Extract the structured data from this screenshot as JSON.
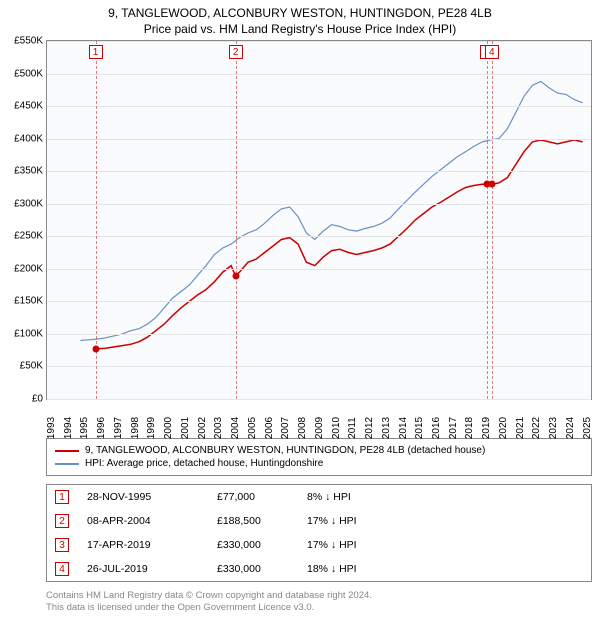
{
  "title_line1": "9, TANGLEWOOD, ALCONBURY WESTON, HUNTINGDON, PE28 4LB",
  "title_line2": "Price paid vs. HM Land Registry's House Price Index (HPI)",
  "chart": {
    "type": "line",
    "background_color": "#fafbfc",
    "border_color": "#888888",
    "grid_color": "#e6e6e6",
    "x_range": [
      1993,
      2025.5
    ],
    "y_range": [
      0,
      550000
    ],
    "y_ticks": [
      0,
      50000,
      100000,
      150000,
      200000,
      250000,
      300000,
      350000,
      400000,
      450000,
      500000,
      550000
    ],
    "y_tick_labels": [
      "£0",
      "£50K",
      "£100K",
      "£150K",
      "£200K",
      "£250K",
      "£300K",
      "£350K",
      "£400K",
      "£450K",
      "£500K",
      "£550K"
    ],
    "x_ticks": [
      1993,
      1994,
      1995,
      1996,
      1997,
      1998,
      1999,
      2000,
      2001,
      2002,
      2003,
      2004,
      2005,
      2006,
      2007,
      2008,
      2009,
      2010,
      2011,
      2012,
      2013,
      2014,
      2015,
      2016,
      2017,
      2018,
      2019,
      2020,
      2021,
      2022,
      2023,
      2024,
      2025
    ],
    "label_fontsize": 10,
    "series": {
      "property": {
        "color": "#cc0000",
        "width": 1.5,
        "data": [
          [
            1995.9,
            77000
          ],
          [
            1996.5,
            78000
          ],
          [
            1997,
            80000
          ],
          [
            1997.5,
            82000
          ],
          [
            1998,
            84000
          ],
          [
            1998.5,
            88000
          ],
          [
            1999,
            95000
          ],
          [
            1999.5,
            105000
          ],
          [
            2000,
            115000
          ],
          [
            2000.5,
            128000
          ],
          [
            2001,
            140000
          ],
          [
            2001.5,
            150000
          ],
          [
            2002,
            160000
          ],
          [
            2002.5,
            168000
          ],
          [
            2003,
            180000
          ],
          [
            2003.5,
            195000
          ],
          [
            2004,
            205000
          ],
          [
            2004.27,
            188500
          ],
          [
            2004.5,
            195000
          ],
          [
            2005,
            210000
          ],
          [
            2005.5,
            215000
          ],
          [
            2006,
            225000
          ],
          [
            2006.5,
            235000
          ],
          [
            2007,
            245000
          ],
          [
            2007.5,
            248000
          ],
          [
            2008,
            238000
          ],
          [
            2008.5,
            210000
          ],
          [
            2009,
            205000
          ],
          [
            2009.5,
            218000
          ],
          [
            2010,
            228000
          ],
          [
            2010.5,
            230000
          ],
          [
            2011,
            225000
          ],
          [
            2011.5,
            222000
          ],
          [
            2012,
            225000
          ],
          [
            2012.5,
            228000
          ],
          [
            2013,
            232000
          ],
          [
            2013.5,
            238000
          ],
          [
            2014,
            250000
          ],
          [
            2014.5,
            262000
          ],
          [
            2015,
            275000
          ],
          [
            2015.5,
            285000
          ],
          [
            2016,
            295000
          ],
          [
            2016.5,
            302000
          ],
          [
            2017,
            310000
          ],
          [
            2017.5,
            318000
          ],
          [
            2018,
            325000
          ],
          [
            2018.5,
            328000
          ],
          [
            2019,
            330000
          ],
          [
            2019.29,
            330000
          ],
          [
            2019.57,
            330000
          ],
          [
            2020,
            332000
          ],
          [
            2020.5,
            340000
          ],
          [
            2021,
            360000
          ],
          [
            2021.5,
            380000
          ],
          [
            2022,
            395000
          ],
          [
            2022.5,
            398000
          ],
          [
            2023,
            395000
          ],
          [
            2023.5,
            392000
          ],
          [
            2024,
            395000
          ],
          [
            2024.5,
            398000
          ],
          [
            2025,
            395000
          ]
        ]
      },
      "hpi": {
        "color": "#6a8fc4",
        "width": 1.2,
        "data": [
          [
            1995,
            90000
          ],
          [
            1995.5,
            91000
          ],
          [
            1996,
            92000
          ],
          [
            1996.5,
            94000
          ],
          [
            1997,
            97000
          ],
          [
            1997.5,
            100000
          ],
          [
            1998,
            105000
          ],
          [
            1998.5,
            108000
          ],
          [
            1999,
            115000
          ],
          [
            1999.5,
            125000
          ],
          [
            2000,
            140000
          ],
          [
            2000.5,
            155000
          ],
          [
            2001,
            165000
          ],
          [
            2001.5,
            175000
          ],
          [
            2002,
            190000
          ],
          [
            2002.5,
            205000
          ],
          [
            2003,
            222000
          ],
          [
            2003.5,
            232000
          ],
          [
            2004,
            238000
          ],
          [
            2004.5,
            248000
          ],
          [
            2005,
            255000
          ],
          [
            2005.5,
            260000
          ],
          [
            2006,
            270000
          ],
          [
            2006.5,
            282000
          ],
          [
            2007,
            292000
          ],
          [
            2007.5,
            295000
          ],
          [
            2008,
            280000
          ],
          [
            2008.5,
            255000
          ],
          [
            2009,
            245000
          ],
          [
            2009.5,
            258000
          ],
          [
            2010,
            268000
          ],
          [
            2010.5,
            265000
          ],
          [
            2011,
            260000
          ],
          [
            2011.5,
            258000
          ],
          [
            2012,
            262000
          ],
          [
            2012.5,
            265000
          ],
          [
            2013,
            270000
          ],
          [
            2013.5,
            278000
          ],
          [
            2014,
            292000
          ],
          [
            2014.5,
            305000
          ],
          [
            2015,
            318000
          ],
          [
            2015.5,
            330000
          ],
          [
            2016,
            342000
          ],
          [
            2016.5,
            352000
          ],
          [
            2017,
            362000
          ],
          [
            2017.5,
            372000
          ],
          [
            2018,
            380000
          ],
          [
            2018.5,
            388000
          ],
          [
            2019,
            395000
          ],
          [
            2019.5,
            398000
          ],
          [
            2020,
            400000
          ],
          [
            2020.5,
            415000
          ],
          [
            2021,
            440000
          ],
          [
            2021.5,
            465000
          ],
          [
            2022,
            482000
          ],
          [
            2022.5,
            488000
          ],
          [
            2023,
            478000
          ],
          [
            2023.5,
            470000
          ],
          [
            2024,
            468000
          ],
          [
            2024.5,
            460000
          ],
          [
            2025,
            455000
          ]
        ]
      }
    },
    "sale_markers": [
      {
        "n": "1",
        "year": 1995.9,
        "price": 77000
      },
      {
        "n": "2",
        "year": 2004.27,
        "price": 188500
      },
      {
        "n": "3",
        "year": 2019.29,
        "price": 330000
      },
      {
        "n": "4",
        "year": 2019.57,
        "price": 330000
      }
    ],
    "marker_border_color": "#cc0000",
    "dashed_color": "#cc0000"
  },
  "legend": {
    "items": [
      {
        "color": "#cc0000",
        "label": "9, TANGLEWOOD, ALCONBURY WESTON, HUNTINGDON, PE28 4LB (detached house)"
      },
      {
        "color": "#6a8fc4",
        "label": "HPI: Average price, detached house, Huntingdonshire"
      }
    ]
  },
  "sales": [
    {
      "n": "1",
      "date": "28-NOV-1995",
      "price": "£77,000",
      "diff": "8% ↓ HPI"
    },
    {
      "n": "2",
      "date": "08-APR-2004",
      "price": "£188,500",
      "diff": "17% ↓ HPI"
    },
    {
      "n": "3",
      "date": "17-APR-2019",
      "price": "£330,000",
      "diff": "17% ↓ HPI"
    },
    {
      "n": "4",
      "date": "26-JUL-2019",
      "price": "£330,000",
      "diff": "18% ↓ HPI"
    }
  ],
  "footer_line1": "Contains HM Land Registry data © Crown copyright and database right 2024.",
  "footer_line2": "This data is licensed under the Open Government Licence v3.0."
}
